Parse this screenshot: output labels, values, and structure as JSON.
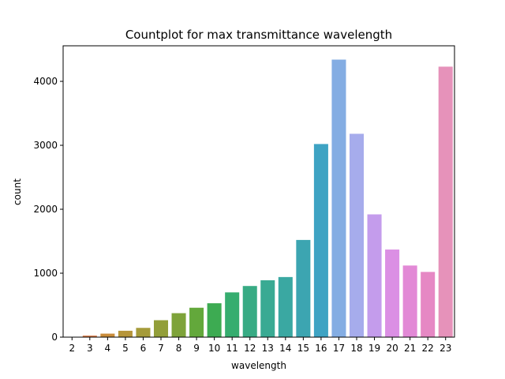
{
  "chart_data": {
    "type": "bar",
    "title": "Countplot for max transmittance wavelength",
    "xlabel": "wavelength",
    "ylabel": "count",
    "categories": [
      "2",
      "3",
      "4",
      "5",
      "6",
      "7",
      "8",
      "9",
      "10",
      "11",
      "12",
      "13",
      "14",
      "15",
      "16",
      "17",
      "18",
      "19",
      "20",
      "21",
      "22",
      "23"
    ],
    "values": [
      3,
      25,
      55,
      100,
      145,
      265,
      375,
      460,
      530,
      700,
      800,
      890,
      940,
      1520,
      3020,
      4340,
      3180,
      1920,
      1370,
      1120,
      1020,
      4230
    ],
    "colors": [
      "#e8857c",
      "#d8804f",
      "#c98c3a",
      "#b6953a",
      "#a59b3a",
      "#929e39",
      "#7ea33a",
      "#63a83b",
      "#3dab52",
      "#36ad6f",
      "#38ab84",
      "#39aa93",
      "#3aa8a2",
      "#3ca5b1",
      "#3ea3c3",
      "#84ade3",
      "#a6acec",
      "#c49cec",
      "#db8fe4",
      "#e289d6",
      "#e688c4",
      "#e692ba"
    ],
    "ylim": [
      0,
      4556
    ],
    "yticks": [
      0,
      1000,
      2000,
      3000,
      4000
    ],
    "grid": false,
    "legend": "none"
  }
}
